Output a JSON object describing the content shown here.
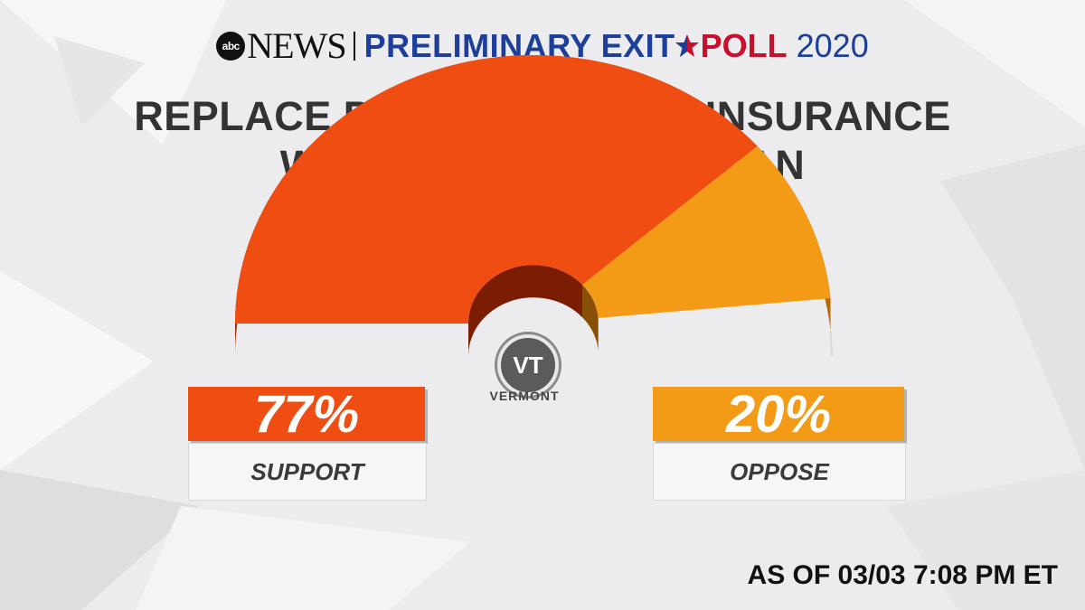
{
  "header": {
    "network_logo": "abc",
    "network_name": "NEWS",
    "program_prefix": "PRELIMINARY EXIT",
    "program_suffix": "POLL",
    "year": "2020",
    "star_icon": "star-icon",
    "colors": {
      "blue": "#1d3f99",
      "red": "#c8102e"
    }
  },
  "title": {
    "line1": "REPLACE PRIVATE HEALTH INSURANCE",
    "line2": "WITH SINGLE GOVT PLAN"
  },
  "state": {
    "abbr": "VT",
    "name": "VERMONT"
  },
  "chart_data": {
    "type": "pie",
    "style": "semicircle-gauge",
    "title": "",
    "categories": [
      "SUPPORT",
      "OPPOSE"
    ],
    "values": [
      77,
      20
    ],
    "value_labels": [
      "77%",
      "20%"
    ],
    "unit": "%",
    "colors": [
      "#f04d12",
      "#f39a17"
    ]
  },
  "timestamp": "AS OF 03/03 7:08 PM ET"
}
